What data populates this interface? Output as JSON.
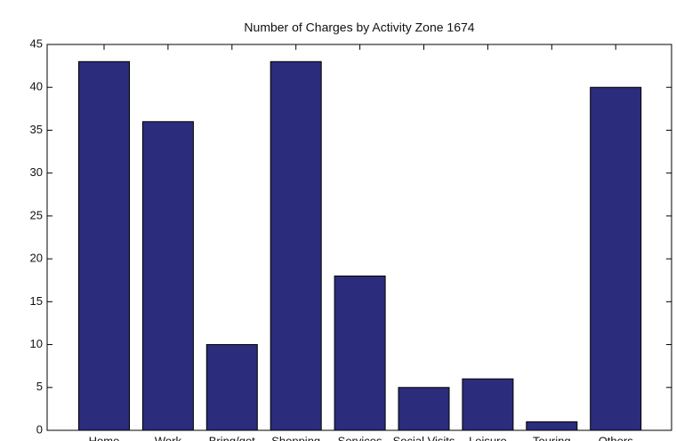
{
  "chart_data": {
    "type": "bar",
    "title": "Number of Charges by Activity Zone 1674",
    "categories": [
      "Home",
      "Work",
      "Bring/get",
      "Shopping",
      "Services",
      "Social Visits",
      "Leisure",
      "Touring",
      "Others"
    ],
    "values": [
      43,
      36,
      10,
      43,
      18,
      5,
      6,
      1,
      40
    ],
    "color": "#2b2c7c",
    "ylim": [
      0,
      45
    ],
    "yticks": [
      0,
      5,
      10,
      15,
      20,
      25,
      30,
      35,
      40,
      45
    ],
    "grid": false
  }
}
